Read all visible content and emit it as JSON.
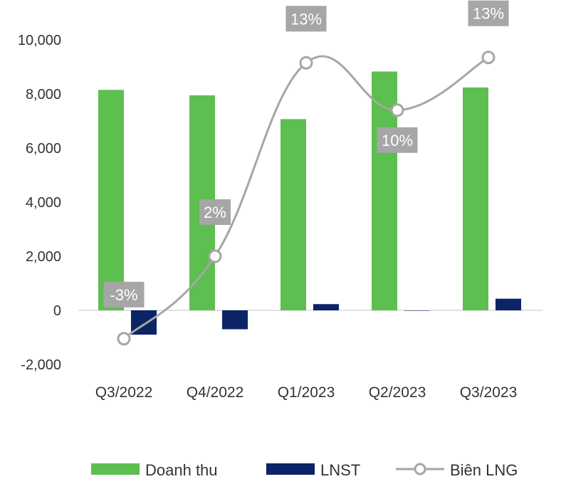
{
  "chart_data": {
    "type": "bar",
    "categories": [
      "Q3/2022",
      "Q4/2022",
      "Q1/2023",
      "Q2/2023",
      "Q3/2023"
    ],
    "series": [
      {
        "name": "Doanh thu",
        "kind": "bar",
        "color": "#5cbf4f",
        "values": [
          8150,
          7950,
          7070,
          8830,
          8240
        ]
      },
      {
        "name": "LNST",
        "kind": "bar",
        "color": "#0b2466",
        "values": [
          -900,
          -700,
          230,
          0,
          430
        ]
      },
      {
        "name": "Biên LNG",
        "kind": "line",
        "color": "#a6a6a6",
        "values": [
          -1050,
          2000,
          9150,
          7400,
          9350
        ],
        "labels": [
          "-3%",
          "2%",
          "13%",
          "10%",
          "13%"
        ]
      }
    ],
    "yticks": [
      "10,000",
      "8,000",
      "6,000",
      "4,000",
      "2,000",
      "0",
      "-2,000"
    ],
    "ylim": [
      -2000,
      10000
    ],
    "legend": "bottom",
    "label_color": "#a6a6a6"
  }
}
